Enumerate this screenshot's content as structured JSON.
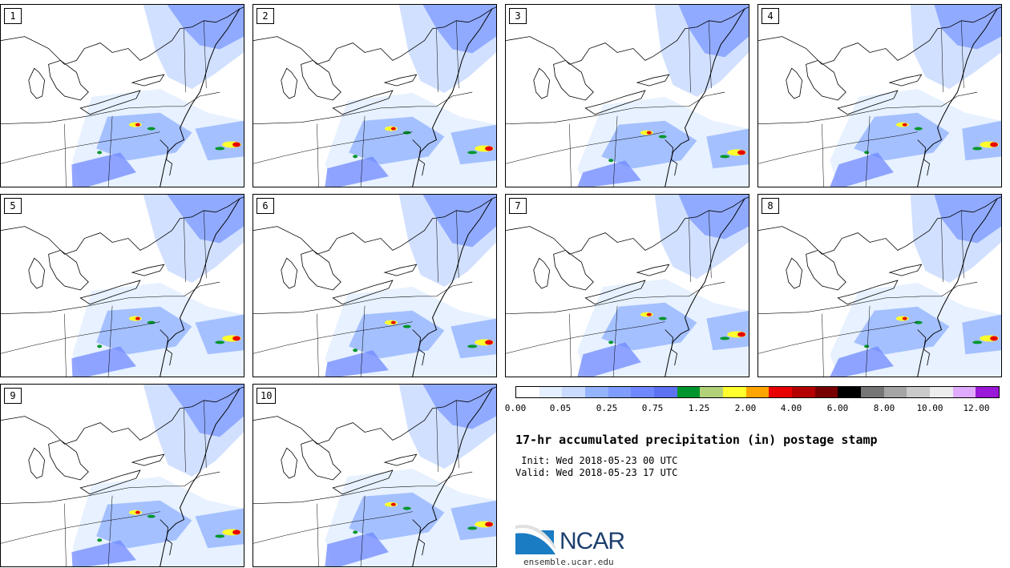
{
  "panels": [
    {
      "number": "1"
    },
    {
      "number": "2"
    },
    {
      "number": "3"
    },
    {
      "number": "4"
    },
    {
      "number": "5"
    },
    {
      "number": "6"
    },
    {
      "number": "7"
    },
    {
      "number": "8"
    },
    {
      "number": "9"
    },
    {
      "number": "10"
    }
  ],
  "colorbar": {
    "colors": [
      "#ffffff",
      "#e4efff",
      "#c9dbff",
      "#94b4ff",
      "#7f9cff",
      "#6f88ff",
      "#5c72f2",
      "#00962d",
      "#b2d27a",
      "#ffff2d",
      "#ffa500",
      "#e80000",
      "#b40000",
      "#780000",
      "#000000",
      "#767676",
      "#a5a5a5",
      "#cacaca",
      "#ededed",
      "#e0aaff",
      "#9a18d8"
    ],
    "labels": [
      "0.00",
      "0.05",
      "0.25",
      "0.75",
      "1.25",
      "2.00",
      "4.00",
      "6.00",
      "8.00",
      "10.00",
      "12.00"
    ]
  },
  "title": "17-hr accumulated precipitation (in) postage stamp",
  "init_line": " Init: Wed 2018-05-23 00 UTC",
  "valid_line": "Valid: Wed 2018-05-23 17 UTC",
  "logo_text": "NCAR",
  "url": "ensemble.ucar.edu"
}
